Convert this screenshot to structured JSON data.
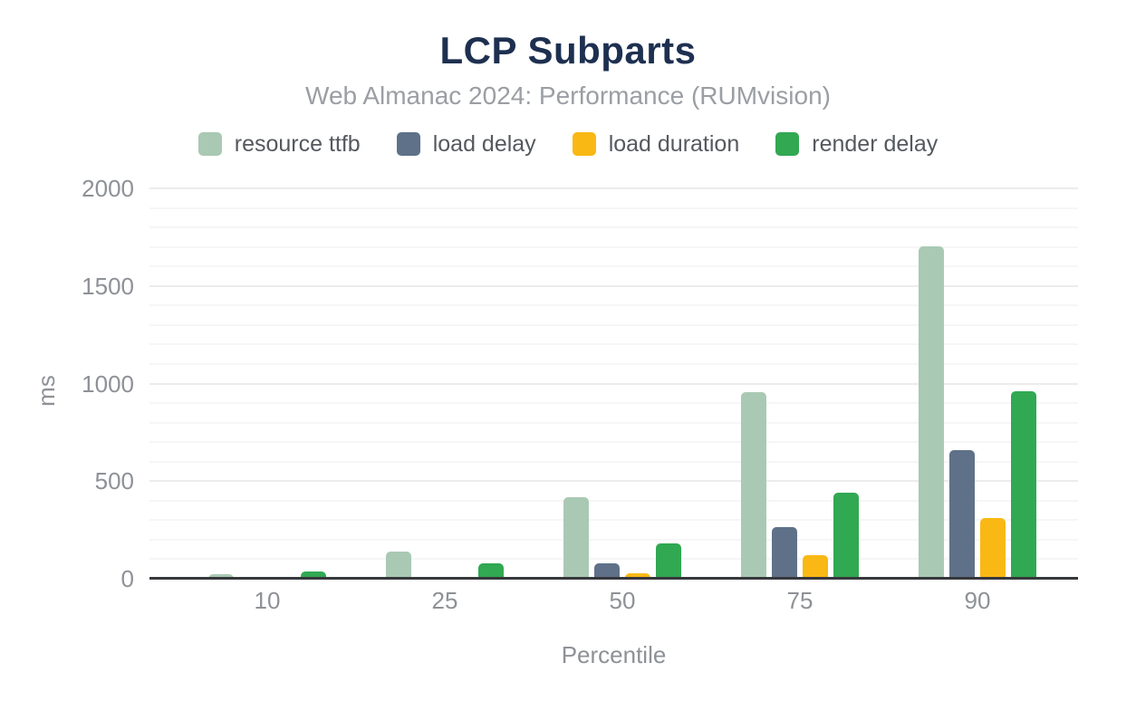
{
  "header": {
    "title": "LCP Subparts",
    "subtitle": "Web Almanac 2024: Performance (RUMvision)"
  },
  "chart_data": {
    "type": "bar",
    "title": "LCP Subparts",
    "subtitle": "Web Almanac 2024: Performance (RUMvision)",
    "categories": [
      "10",
      "25",
      "50",
      "75",
      "90"
    ],
    "series": [
      {
        "name": "resource ttfb",
        "color": "#a9c9b4",
        "values": [
          25,
          140,
          420,
          955,
          1705
        ]
      },
      {
        "name": "load delay",
        "color": "#5f7189",
        "values": [
          0,
          10,
          80,
          265,
          660
        ]
      },
      {
        "name": "load duration",
        "color": "#f9b814",
        "values": [
          0,
          0,
          30,
          120,
          310
        ]
      },
      {
        "name": "render delay",
        "color": "#31a852",
        "values": [
          35,
          80,
          180,
          440,
          960
        ]
      }
    ],
    "xlabel": "Percentile",
    "ylabel": "ms",
    "units": "ms",
    "ylim": [
      0,
      2000
    ],
    "y_ticks": [
      0,
      500,
      1000,
      1500,
      2000
    ],
    "minor_grid_step": 100,
    "grid": true,
    "legend_position": "top"
  },
  "colors": {
    "background": "#ffffff",
    "title_text": "#1e3050",
    "subtitle_text": "#9b9ea3",
    "legend_text": "#55595e",
    "axis_text": "#8e9196",
    "baseline": "#37383c",
    "grid_minor": "#f6f6f6",
    "grid_major": "#ececec"
  }
}
